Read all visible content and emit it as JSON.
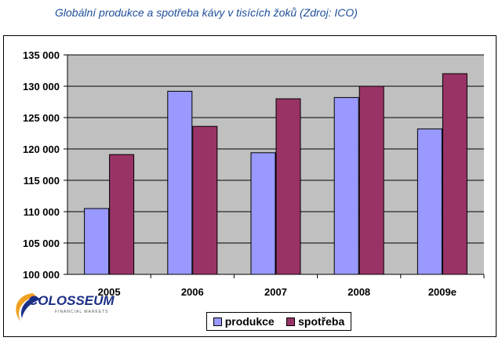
{
  "title": "Globální produkce a spotřeba kávy v tisících žoků  (Zdroj: ICO)",
  "logo": {
    "name": "COLOSSEUM",
    "tagline": "FINANCIAL MARKETS"
  },
  "colors": {
    "produkce": "#9999ff",
    "spotreba": "#993366",
    "plot_bg": "#c0c0c0"
  },
  "legend": {
    "position": "bottom"
  },
  "chart_data": {
    "type": "bar",
    "title": "Globální produkce a spotřeba kávy v tisících žoků  (Zdroj: ICO)",
    "categories": [
      "2005",
      "2006",
      "2007",
      "2008",
      "2009e"
    ],
    "series": [
      {
        "name": "produkce",
        "values": [
          110500,
          129200,
          119400,
          128200,
          123200
        ]
      },
      {
        "name": "spotřeba",
        "values": [
          119100,
          123600,
          128000,
          130000,
          132000
        ]
      }
    ],
    "ylim": [
      100000,
      135000
    ],
    "yticks": [
      100000,
      105000,
      110000,
      115000,
      120000,
      125000,
      130000,
      135000
    ],
    "ytick_labels": [
      "100 000",
      "105 000",
      "110 000",
      "115 000",
      "120 000",
      "125 000",
      "130 000",
      "135 000"
    ],
    "grid": true
  }
}
